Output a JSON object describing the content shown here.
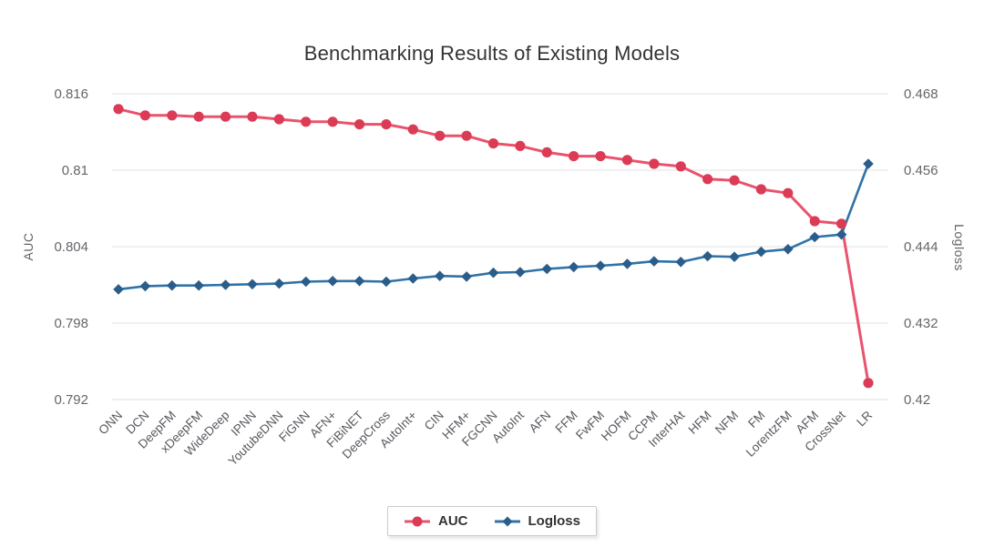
{
  "chart_data": {
    "type": "line",
    "title": "Benchmarking Results of Existing Models",
    "categories": [
      "ONN",
      "DCN",
      "DeepFM",
      "xDeepFM",
      "WideDeep",
      "IPNN",
      "YoutubeDNN",
      "FiGNN",
      "AFN+",
      "FiBiNET",
      "DeepCross",
      "AutoInt+",
      "CIN",
      "HFM+",
      "FGCNN",
      "AutoInt",
      "AFN",
      "FFM",
      "FwFM",
      "HOFM",
      "CCPM",
      "InterHAt",
      "HFM",
      "NFM",
      "FM",
      "LorentzFM",
      "AFM",
      "CrossNet",
      "LR"
    ],
    "series": [
      {
        "name": "AUC",
        "axis": "left",
        "marker": "circle",
        "line_color": "#e9536d",
        "marker_color": "#db3b55",
        "values": [
          0.8148,
          0.8143,
          0.8143,
          0.8142,
          0.8142,
          0.8142,
          0.814,
          0.8138,
          0.8138,
          0.8136,
          0.8136,
          0.8132,
          0.8127,
          0.8127,
          0.8121,
          0.8119,
          0.8114,
          0.8111,
          0.8111,
          0.8108,
          0.8105,
          0.8103,
          0.8093,
          0.8092,
          0.8085,
          0.8082,
          0.806,
          0.8058,
          0.7933
        ]
      },
      {
        "name": "Logloss",
        "axis": "right",
        "marker": "diamond",
        "line_color": "#2f73a9",
        "marker_color": "#2a5d8a",
        "values": [
          0.4373,
          0.4378,
          0.4379,
          0.4379,
          0.438,
          0.4381,
          0.4382,
          0.4385,
          0.4386,
          0.4386,
          0.4385,
          0.439,
          0.4394,
          0.4393,
          0.4399,
          0.44,
          0.4405,
          0.4408,
          0.441,
          0.4413,
          0.4417,
          0.4416,
          0.4425,
          0.4424,
          0.4432,
          0.4436,
          0.4455,
          0.4459,
          0.457
        ]
      }
    ],
    "left_axis": {
      "label": "AUC",
      "min": 0.792,
      "max": 0.816,
      "ticks": [
        "0.816",
        "0.81",
        "0.804",
        "0.798",
        "0.792"
      ]
    },
    "right_axis": {
      "label": "Logloss",
      "min": 0.42,
      "max": 0.468,
      "ticks": [
        "0.468",
        "0.456",
        "0.444",
        "0.432",
        "0.42"
      ]
    },
    "legend": {
      "position": "bottom"
    },
    "grid": true,
    "colors": {
      "grid": "#ebebeb",
      "title_text": "#333333",
      "y_tick_text": "#63666a",
      "x_tick_text": "#56595e",
      "axis_title_text": "#5f6368",
      "background": "#ffffff"
    }
  }
}
